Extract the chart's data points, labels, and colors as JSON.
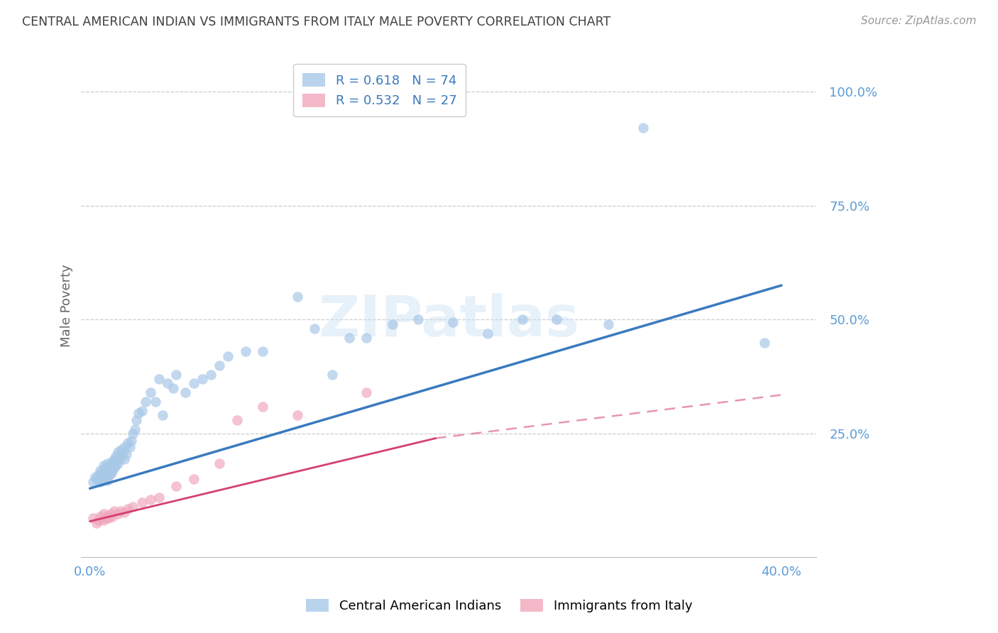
{
  "title": "CENTRAL AMERICAN INDIAN VS IMMIGRANTS FROM ITALY MALE POVERTY CORRELATION CHART",
  "source": "Source: ZipAtlas.com",
  "xlabel_bottom_left": "0.0%",
  "xlabel_bottom_right": "40.0%",
  "ylabel": "Male Poverty",
  "ytick_labels": [
    "100.0%",
    "75.0%",
    "50.0%",
    "25.0%"
  ],
  "ytick_values": [
    1.0,
    0.75,
    0.5,
    0.25
  ],
  "xlim": [
    -0.005,
    0.42
  ],
  "ylim": [
    -0.02,
    1.08
  ],
  "legend_r1": "R = 0.618",
  "legend_n1": "N = 74",
  "legend_r2": "R = 0.532",
  "legend_n2": "N = 27",
  "blue_color": "#a8c8e8",
  "blue_line_color": "#3a7abf",
  "pink_color": "#f0a8bc",
  "pink_line_color": "#d44070",
  "watermark_text": "ZIPatlas",
  "blue_scatter_x": [
    0.002,
    0.003,
    0.004,
    0.005,
    0.006,
    0.006,
    0.007,
    0.007,
    0.008,
    0.008,
    0.008,
    0.009,
    0.009,
    0.01,
    0.01,
    0.01,
    0.01,
    0.011,
    0.011,
    0.012,
    0.012,
    0.013,
    0.013,
    0.014,
    0.014,
    0.015,
    0.015,
    0.016,
    0.016,
    0.017,
    0.018,
    0.018,
    0.019,
    0.02,
    0.02,
    0.021,
    0.022,
    0.023,
    0.024,
    0.025,
    0.026,
    0.027,
    0.028,
    0.03,
    0.032,
    0.035,
    0.038,
    0.04,
    0.042,
    0.045,
    0.048,
    0.05,
    0.055,
    0.06,
    0.065,
    0.07,
    0.075,
    0.08,
    0.09,
    0.1,
    0.12,
    0.13,
    0.14,
    0.15,
    0.16,
    0.175,
    0.19,
    0.21,
    0.23,
    0.25,
    0.27,
    0.3,
    0.32,
    0.39
  ],
  "blue_scatter_y": [
    0.145,
    0.155,
    0.15,
    0.16,
    0.145,
    0.17,
    0.148,
    0.165,
    0.15,
    0.165,
    0.18,
    0.155,
    0.175,
    0.148,
    0.162,
    0.17,
    0.185,
    0.158,
    0.175,
    0.162,
    0.18,
    0.168,
    0.19,
    0.175,
    0.195,
    0.18,
    0.2,
    0.185,
    0.21,
    0.195,
    0.2,
    0.215,
    0.21,
    0.195,
    0.22,
    0.205,
    0.23,
    0.22,
    0.235,
    0.25,
    0.26,
    0.28,
    0.295,
    0.3,
    0.32,
    0.34,
    0.32,
    0.37,
    0.29,
    0.36,
    0.35,
    0.38,
    0.34,
    0.36,
    0.37,
    0.38,
    0.4,
    0.42,
    0.43,
    0.43,
    0.55,
    0.48,
    0.38,
    0.46,
    0.46,
    0.49,
    0.5,
    0.495,
    0.47,
    0.5,
    0.5,
    0.49,
    0.92,
    0.45
  ],
  "pink_scatter_x": [
    0.002,
    0.004,
    0.005,
    0.006,
    0.008,
    0.008,
    0.009,
    0.01,
    0.011,
    0.012,
    0.013,
    0.014,
    0.016,
    0.018,
    0.02,
    0.022,
    0.025,
    0.03,
    0.035,
    0.04,
    0.05,
    0.06,
    0.075,
    0.085,
    0.1,
    0.12,
    0.16
  ],
  "pink_scatter_y": [
    0.065,
    0.055,
    0.06,
    0.068,
    0.06,
    0.075,
    0.065,
    0.07,
    0.065,
    0.075,
    0.068,
    0.08,
    0.075,
    0.08,
    0.078,
    0.085,
    0.09,
    0.1,
    0.105,
    0.11,
    0.135,
    0.15,
    0.185,
    0.28,
    0.31,
    0.29,
    0.34
  ],
  "blue_line_x": [
    0.0,
    0.4
  ],
  "blue_line_y": [
    0.13,
    0.575
  ],
  "pink_solid_line_x": [
    0.0,
    0.2
  ],
  "pink_solid_line_y": [
    0.058,
    0.24
  ],
  "pink_dashed_line_x": [
    0.2,
    0.4
  ],
  "pink_dashed_line_y": [
    0.24,
    0.335
  ],
  "background_color": "#ffffff",
  "grid_color": "#cccccc",
  "title_color": "#404040",
  "ytick_color": "#5b9bd5"
}
